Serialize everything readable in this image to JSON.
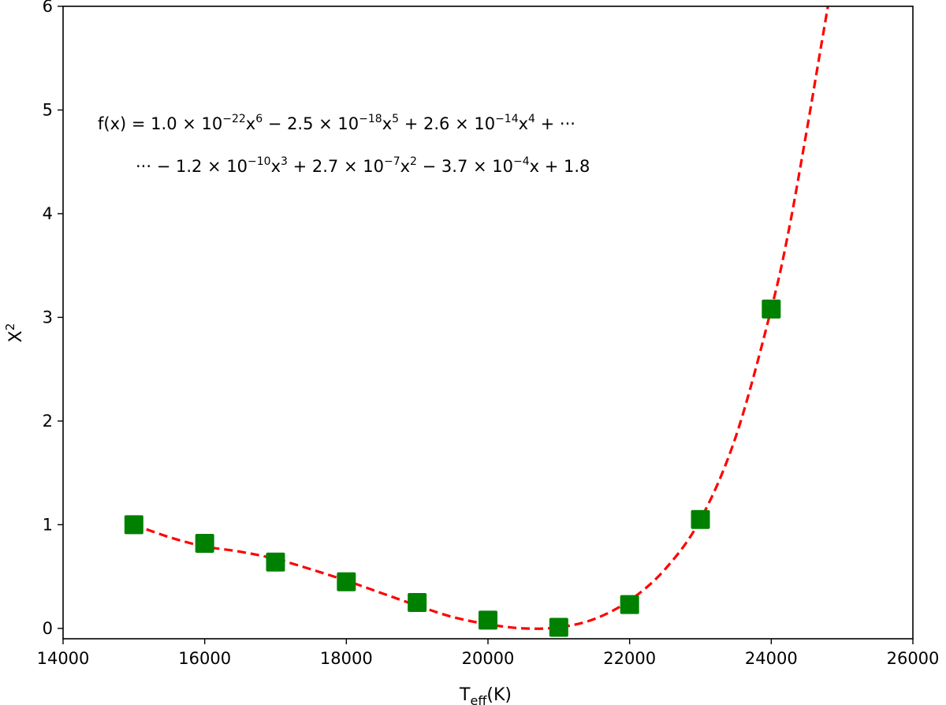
{
  "chart_data": {
    "type": "scatter",
    "xlabel": "T",
    "xlabel_sub": "eff",
    "xlabel_unit": "(K)",
    "ylabel": "X",
    "ylabel_sup": "2",
    "xlim": [
      14000,
      26000
    ],
    "ylim": [
      -0.1,
      6
    ],
    "xticks": [
      14000,
      16000,
      18000,
      20000,
      22000,
      24000,
      26000
    ],
    "yticks": [
      0,
      1,
      2,
      3,
      4,
      5,
      6
    ],
    "grid": false,
    "points": {
      "x": [
        15000,
        16000,
        17000,
        18000,
        19000,
        20000,
        21000,
        22000,
        23000,
        24000
      ],
      "y": [
        1.0,
        0.82,
        0.64,
        0.45,
        0.25,
        0.08,
        0.01,
        0.23,
        1.05,
        3.08
      ],
      "color": "#008000",
      "marker": "square"
    },
    "fit": {
      "style": "dashed",
      "color": "#ff0000",
      "x": [
        15000,
        15500,
        16000,
        16500,
        17000,
        17500,
        18000,
        18500,
        19000,
        19500,
        20000,
        20500,
        21000,
        21500,
        22000,
        22500,
        23000,
        23500,
        24000,
        24250,
        24500,
        24700,
        24800
      ],
      "y": [
        1.0,
        0.88,
        0.79,
        0.74,
        0.67,
        0.57,
        0.46,
        0.34,
        0.22,
        0.11,
        0.04,
        0.0,
        0.01,
        0.09,
        0.27,
        0.57,
        1.05,
        1.85,
        3.08,
        3.85,
        4.8,
        5.6,
        6.0
      ]
    },
    "annotation": {
      "line1": "f(x) = 1.0 × 10^{−22}x^{6} − 2.5 × 10^{−18}x^{5} + 2.6 × 10^{−14}x^{4} + ···",
      "line2": "··· − 1.2 × 10^{−10}x^{3} + 2.7 × 10^{−7}x^{2} − 3.7 × 10^{−4}x + 1.8"
    }
  }
}
